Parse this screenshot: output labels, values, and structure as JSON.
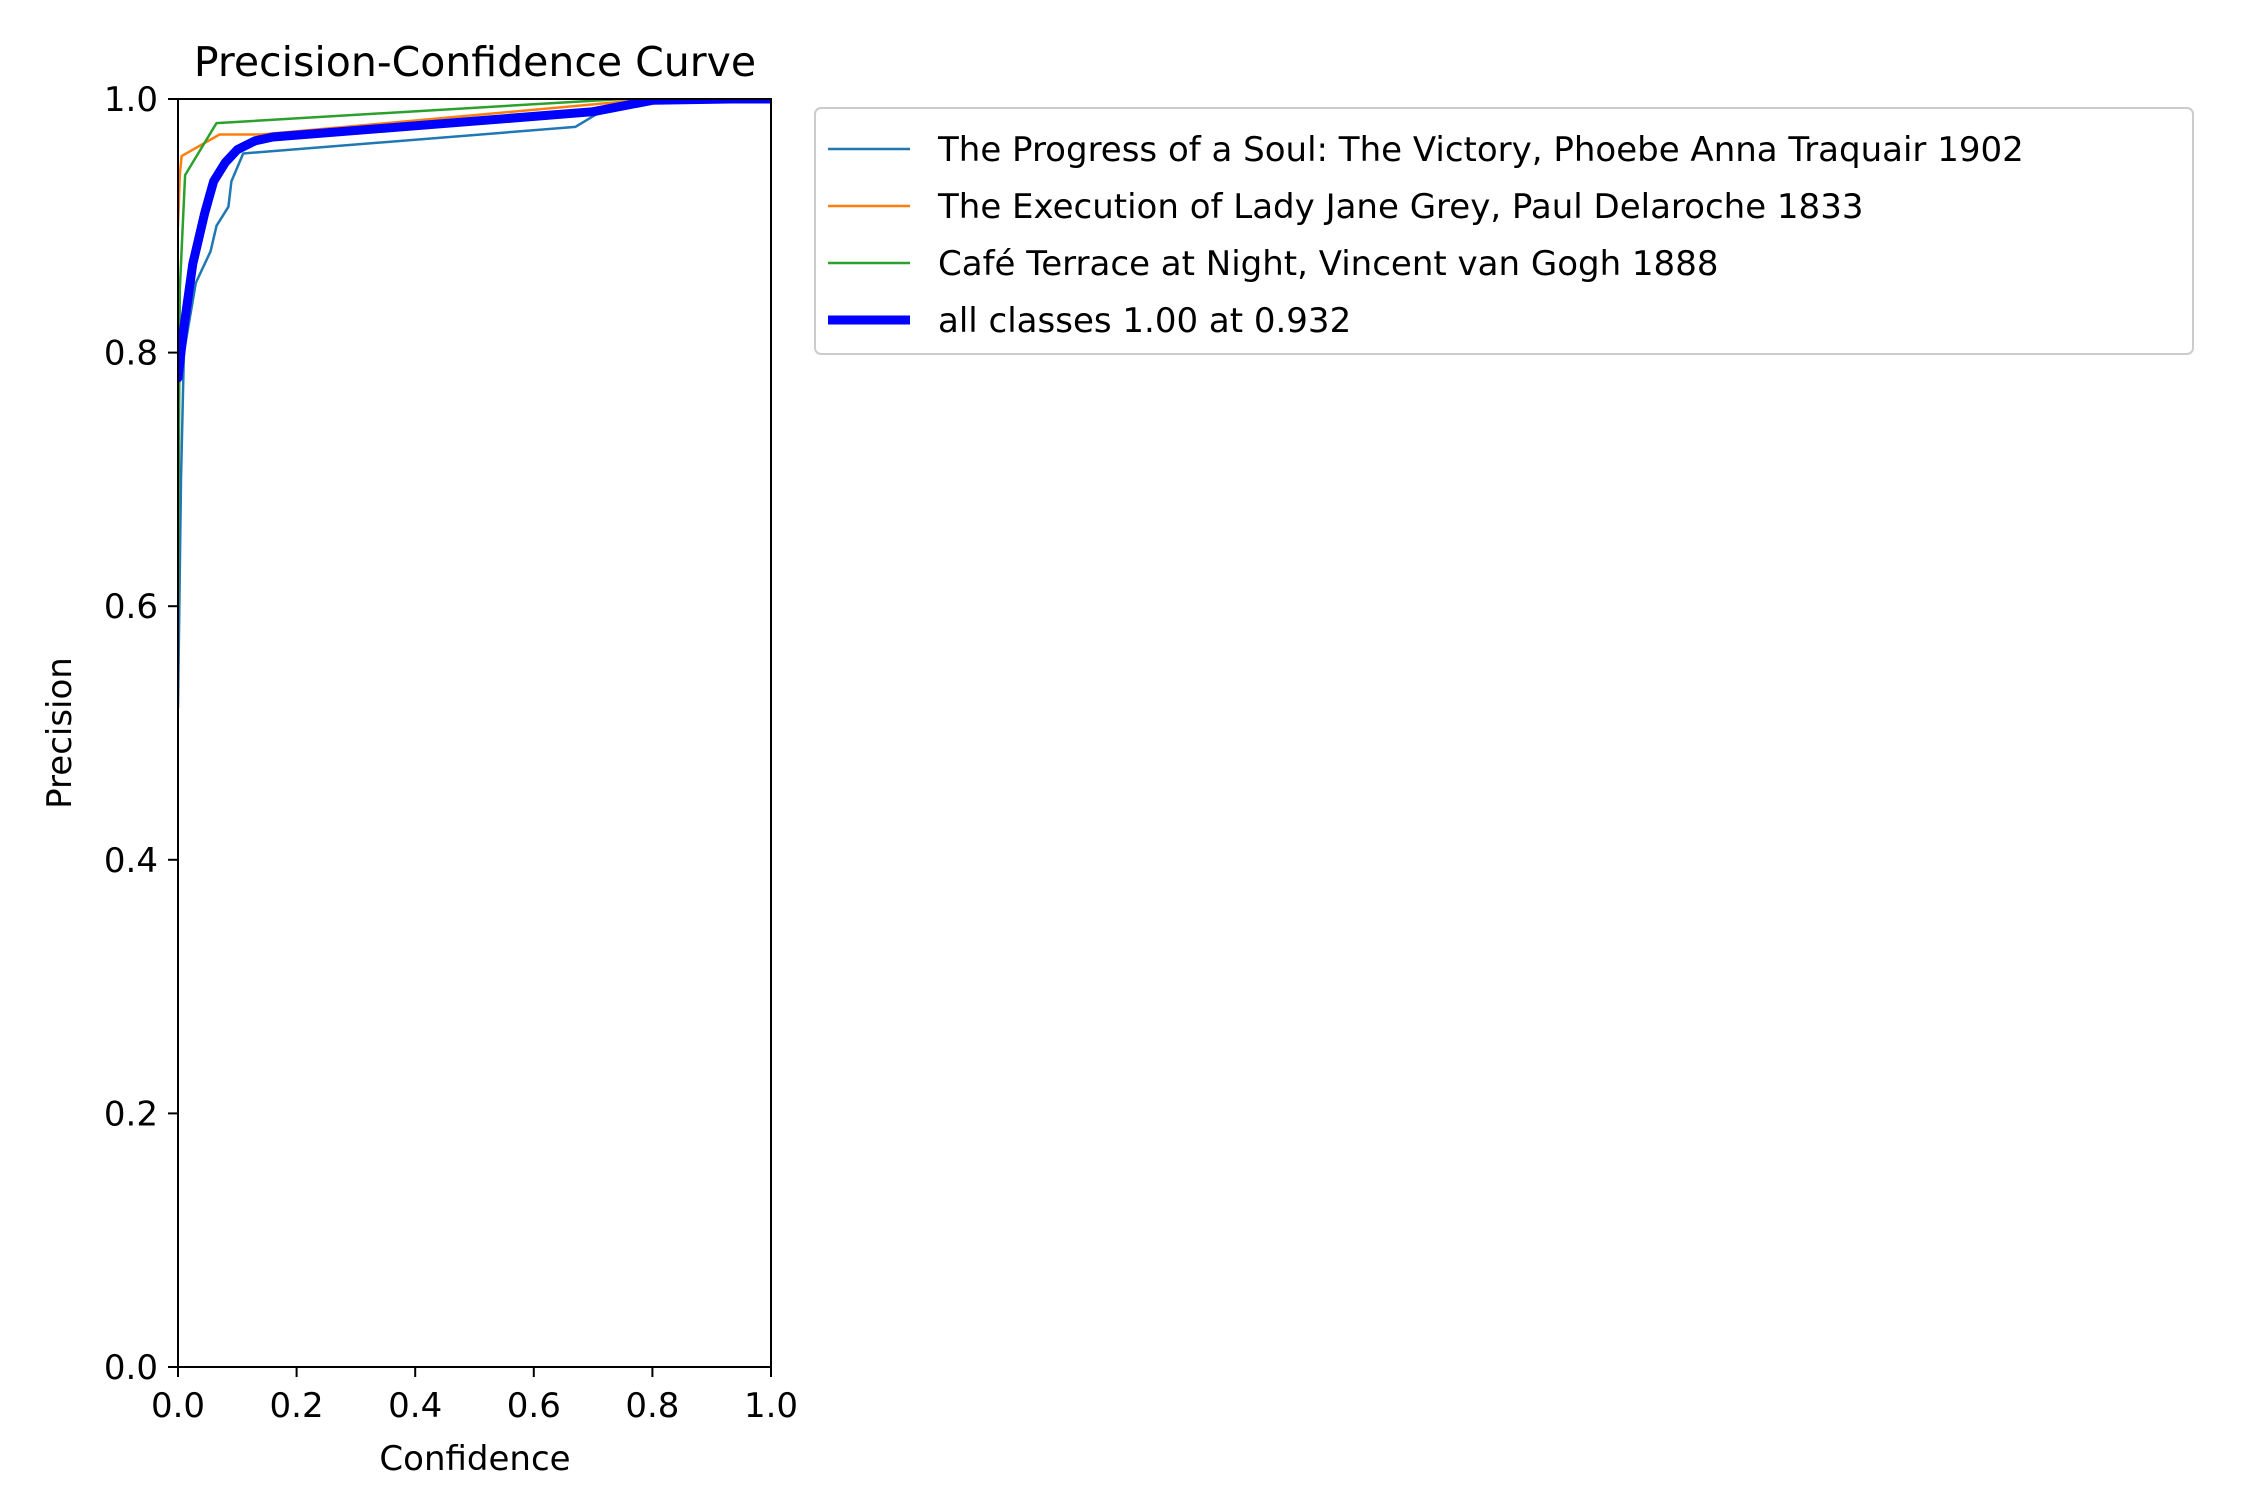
{
  "chart_data": {
    "type": "line",
    "title": "Precision-Confidence Curve",
    "xlabel": "Confidence",
    "ylabel": "Precision",
    "xlim": [
      0,
      1
    ],
    "ylim": [
      0,
      1
    ],
    "xticks": [
      "0.0",
      "0.2",
      "0.4",
      "0.6",
      "0.8",
      "1.0"
    ],
    "yticks": [
      "0.0",
      "0.2",
      "0.4",
      "0.6",
      "0.8",
      "1.0"
    ],
    "grid": false,
    "legend_position": "outside-right",
    "series": [
      {
        "name": "The Progress of a Soul: The Victory, Phoebe Anna Traquair 1902",
        "color": "#1f77b4",
        "x": [
          0.0,
          0.005,
          0.01,
          0.03,
          0.055,
          0.065,
          0.085,
          0.09,
          0.11,
          0.67,
          0.72,
          0.8,
          1.0
        ],
        "y": [
          0.52,
          0.7,
          0.8,
          0.855,
          0.88,
          0.9,
          0.915,
          0.935,
          0.957,
          0.978,
          0.992,
          1.0,
          1.0
        ]
      },
      {
        "name": "The Execution of Lady Jane Grey, Paul Delaroche 1833",
        "color": "#ff7f0e",
        "x": [
          0.0,
          0.003,
          0.006,
          0.07,
          0.14,
          0.8,
          1.0
        ],
        "y": [
          0.9,
          0.94,
          0.955,
          0.972,
          0.972,
          1.0,
          1.0
        ]
      },
      {
        "name": "Café Terrace at Night, Vincent van Gogh 1888",
        "color": "#2ca02c",
        "x": [
          0.0,
          0.003,
          0.012,
          0.065,
          0.75,
          1.0
        ],
        "y": [
          0.6,
          0.85,
          0.94,
          0.981,
          1.0,
          1.0
        ]
      },
      {
        "name": "all classes 1.00 at 0.932",
        "color": "#0000ff",
        "emphasis": "thick",
        "x": [
          0.0,
          0.01,
          0.025,
          0.045,
          0.06,
          0.08,
          0.1,
          0.13,
          0.16,
          0.7,
          0.8,
          0.932,
          1.0
        ],
        "y": [
          0.78,
          0.82,
          0.87,
          0.91,
          0.935,
          0.95,
          0.96,
          0.967,
          0.97,
          0.99,
          0.999,
          1.0,
          1.0
        ]
      }
    ]
  }
}
